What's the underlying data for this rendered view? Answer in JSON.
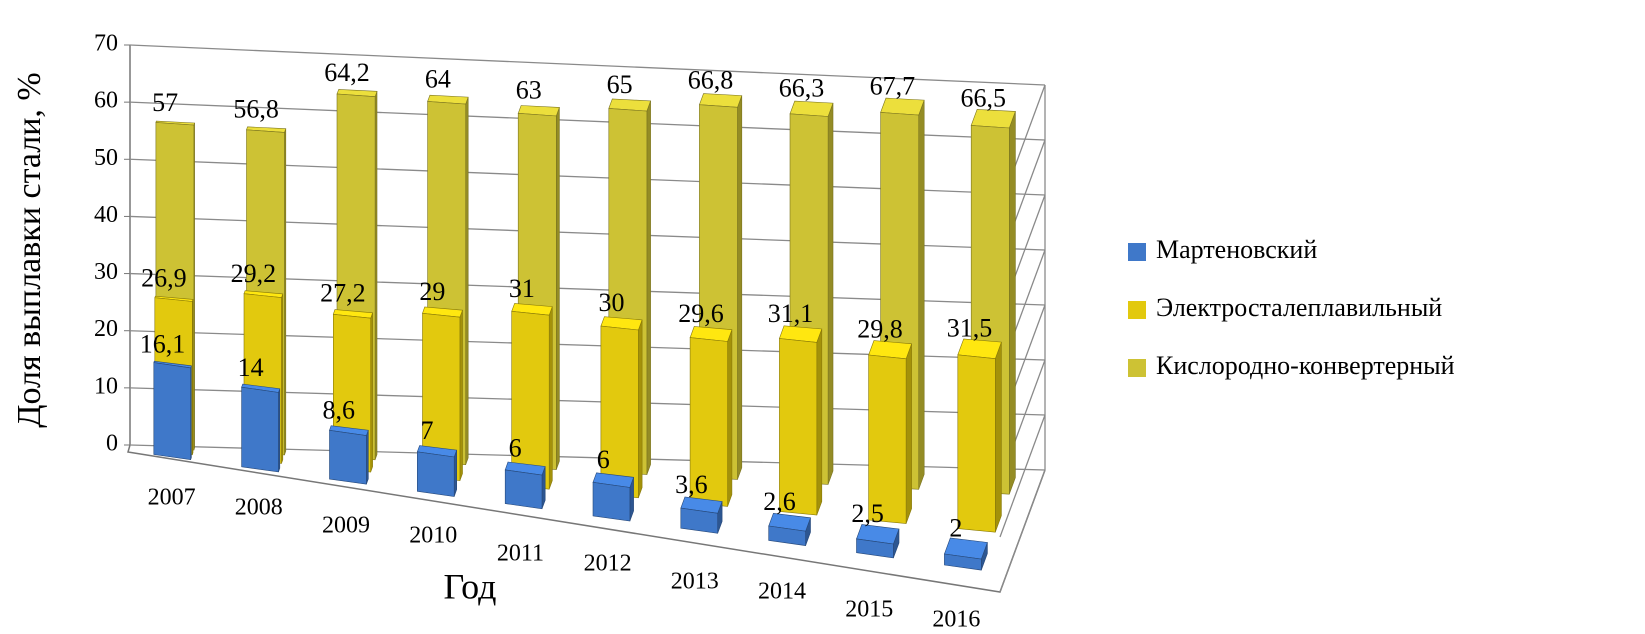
{
  "chart_data": {
    "type": "bar3d",
    "x_label": "Год",
    "y_label": "Доля выплавки стали, %",
    "categories": [
      "2007",
      "2008",
      "2009",
      "2010",
      "2011",
      "2012",
      "2013",
      "2014",
      "2015",
      "2016"
    ],
    "series": [
      {
        "name": "Мартеновский",
        "color": "#3f78c9",
        "values": [
          16.1,
          14,
          8.6,
          7,
          6,
          6,
          3.6,
          2.6,
          2.5,
          2
        ],
        "value_labels": [
          "16,1",
          "14",
          "8,6",
          "7",
          "6",
          "6",
          "3,6",
          "2,6",
          "2,5",
          "2"
        ]
      },
      {
        "name": "Электросталеплавильный",
        "color": "#e2c90e",
        "values": [
          26.9,
          29.2,
          27.2,
          29,
          31,
          30,
          29.6,
          31.1,
          29.8,
          31.5
        ],
        "value_labels": [
          "26,9",
          "29,2",
          "27,2",
          "29",
          "31",
          "30",
          "29,6",
          "31,1",
          "29,8",
          "31,5"
        ]
      },
      {
        "name": "Кислородно-конвертерный",
        "color": "#cdc234",
        "values": [
          57,
          56.8,
          64.2,
          64,
          63,
          65,
          66.8,
          66.3,
          67.7,
          66.5
        ],
        "value_labels": [
          "57",
          "56,8",
          "64,2",
          "64",
          "63",
          "65",
          "66,8",
          "66,3",
          "67,7",
          "66,5"
        ]
      }
    ],
    "ylim": [
      0,
      70
    ],
    "yticks": [
      0,
      10,
      20,
      30,
      40,
      50,
      60,
      70
    ],
    "grid": true,
    "legend": "right"
  }
}
